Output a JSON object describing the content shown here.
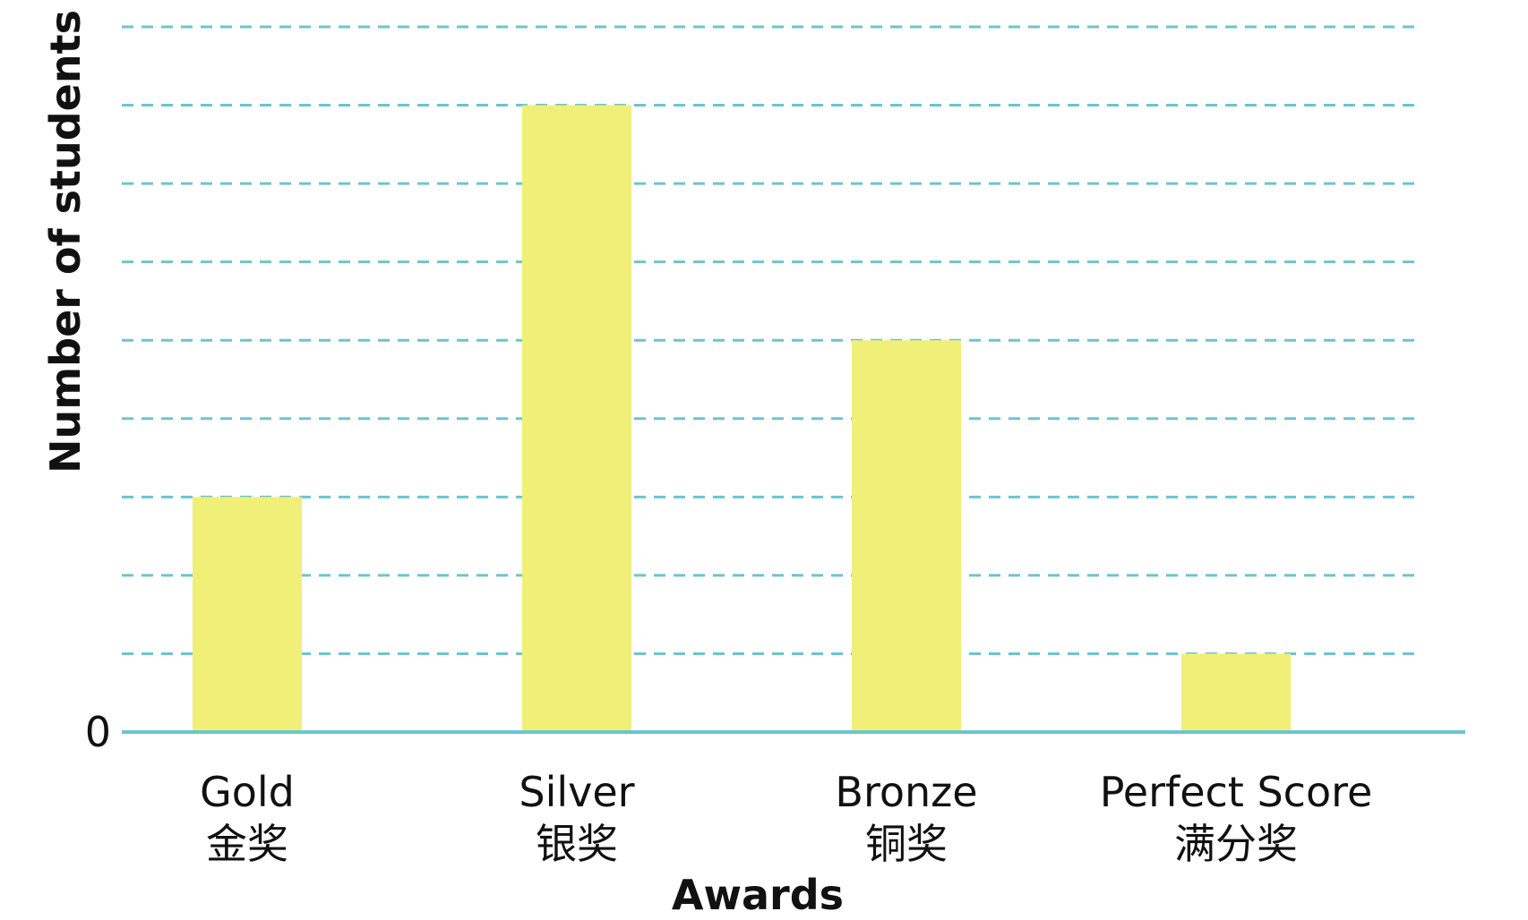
{
  "chart_data": {
    "type": "bar",
    "title": "",
    "xlabel": "Awards",
    "ylabel": "Number of students",
    "categories": [
      [
        "Gold",
        "金奖"
      ],
      [
        "Silver",
        "银奖"
      ],
      [
        "Bronze",
        "铜奖"
      ],
      [
        "Perfect Score",
        "满分奖"
      ]
    ],
    "values": [
      3,
      8,
      5,
      1
    ],
    "ylim": [
      0,
      9
    ],
    "grid_step": 1,
    "y_tick_labels": [
      {
        "value": 0,
        "label": "0"
      }
    ],
    "grid": true,
    "legend": "none",
    "colors": {
      "bar": "#f0ef78",
      "grid": "#6cc5cf",
      "axis": "#6cc5cf"
    }
  }
}
